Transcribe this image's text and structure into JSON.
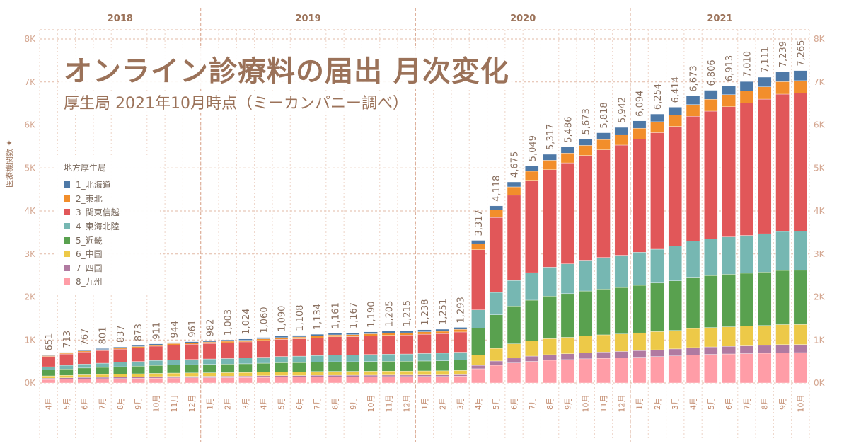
{
  "chart_data": {
    "type": "bar",
    "stacked": true,
    "title": "オンライン診療料の届出 月次変化",
    "subtitle": "厚生局 2021年10月時点（ミーカンパニー調べ）",
    "ylabel": "医療機関数",
    "ylim": [
      0,
      8000
    ],
    "y_ticks": [
      "0K",
      "1K",
      "2K",
      "3K",
      "4K",
      "5K",
      "6K",
      "7K",
      "8K"
    ],
    "grid": true,
    "legend_title": "地方厚生局",
    "legend_position": "left",
    "years": [
      {
        "label": "2018",
        "months": 9
      },
      {
        "label": "2019",
        "months": 12
      },
      {
        "label": "2020",
        "months": 12
      },
      {
        "label": "2021",
        "months": 10
      }
    ],
    "categories": [
      "4月",
      "5月",
      "6月",
      "7月",
      "8月",
      "9月",
      "10月",
      "11月",
      "12月",
      "1月",
      "2月",
      "3月",
      "4月",
      "5月",
      "6月",
      "7月",
      "8月",
      "9月",
      "10月",
      "11月",
      "12月",
      "1月",
      "2月",
      "3月",
      "4月",
      "5月",
      "6月",
      "7月",
      "8月",
      "9月",
      "10月",
      "11月",
      "12月",
      "1月",
      "2月",
      "3月",
      "4月",
      "5月",
      "6月",
      "7月",
      "8月",
      "9月",
      "10月"
    ],
    "totals": [
      651,
      713,
      767,
      801,
      837,
      873,
      911,
      944,
      961,
      982,
      1003,
      1024,
      1060,
      1090,
      1108,
      1134,
      1161,
      1167,
      1190,
      1205,
      1215,
      1238,
      1251,
      1293,
      3317,
      4118,
      4675,
      5049,
      5317,
      5486,
      5673,
      5818,
      5942,
      6094,
      6254,
      6414,
      6673,
      6806,
      6913,
      7010,
      7111,
      7239,
      7265
    ],
    "total_labels": [
      "651",
      "713",
      "767",
      "801",
      "837",
      "873",
      "911",
      "944",
      "961",
      "982",
      "1,003",
      "1,024",
      "1,060",
      "1,090",
      "1,108",
      "1,134",
      "1,161",
      "1,167",
      "1,190",
      "1,205",
      "1,215",
      "1,238",
      "1,251",
      "1,293",
      "3,317",
      "4,118",
      "4,675",
      "5,049",
      "5,317",
      "5,486",
      "5,673",
      "5,818",
      "5,942",
      "6,094",
      "6,254",
      "6,414",
      "6,673",
      "6,806",
      "6,913",
      "7,010",
      "7,111",
      "7,239",
      "7,265"
    ],
    "series": [
      {
        "name": "1_北海道",
        "color": "#4e79a7",
        "values": [
          17,
          20,
          23,
          23,
          23,
          25,
          25,
          27,
          28,
          28,
          31,
          31,
          33,
          35,
          38,
          39,
          42,
          42,
          46,
          46,
          48,
          49,
          48,
          47,
          77,
          96,
          115,
          126,
          138,
          141,
          149,
          157,
          167,
          171,
          179,
          187,
          199,
          209,
          210,
          219,
          225,
          233,
          235
        ]
      },
      {
        "name": "2_東北",
        "color": "#f28e2b",
        "values": [
          17,
          19,
          21,
          23,
          25,
          27,
          29,
          31,
          32,
          34,
          35,
          37,
          39,
          41,
          42,
          44,
          46,
          47,
          49,
          51,
          52,
          55,
          56,
          60,
          140,
          173,
          195,
          211,
          221,
          227,
          234,
          240,
          244,
          250,
          256,
          262,
          272,
          276,
          279,
          283,
          286,
          290,
          290
        ]
      },
      {
        "name": "3_関東信越",
        "color": "#e15759",
        "values": [
          240,
          263,
          283,
          295,
          308,
          321,
          335,
          347,
          353,
          361,
          368,
          376,
          388,
          398,
          404,
          413,
          422,
          424,
          432,
          437,
          441,
          449,
          454,
          470,
          1400,
          1742,
          1982,
          2146,
          2265,
          2348,
          2434,
          2502,
          2561,
          2633,
          2708,
          2784,
          2903,
          2967,
          3028,
          3077,
          3129,
          3192,
          3210
        ]
      },
      {
        "name": "4_東海北陸",
        "color": "#76b7b2",
        "values": [
          77,
          85,
          92,
          97,
          103,
          108,
          114,
          119,
          122,
          126,
          130,
          134,
          140,
          145,
          149,
          153,
          158,
          160,
          164,
          167,
          169,
          174,
          178,
          186,
          420,
          523,
          593,
          640,
          673,
          693,
          717,
          734,
          749,
          768,
          787,
          807,
          839,
          855,
          867,
          878,
          890,
          906,
          910
        ]
      },
      {
        "name": "5_近畿",
        "color": "#59a14f",
        "values": [
          136,
          148,
          158,
          165,
          171,
          178,
          185,
          190,
          193,
          196,
          199,
          202,
          208,
          213,
          215,
          219,
          223,
          223,
          226,
          228,
          228,
          231,
          233,
          240,
          630,
          778,
          879,
          944,
          989,
          1015,
          1044,
          1065,
          1081,
          1106,
          1129,
          1152,
          1192,
          1209,
          1222,
          1232,
          1244,
          1260,
          1260
        ]
      },
      {
        "name": "6_中国",
        "color": "#edc948",
        "values": [
          54,
          59,
          63,
          66,
          69,
          72,
          75,
          77,
          78,
          80,
          81,
          82,
          85,
          87,
          88,
          90,
          91,
          91,
          92,
          93,
          94,
          95,
          96,
          99,
          240,
          295,
          332,
          357,
          373,
          383,
          393,
          401,
          406,
          414,
          423,
          430,
          445,
          451,
          455,
          458,
          462,
          466,
          465
        ]
      },
      {
        "name": "7_四国",
        "color": "#b07aa1",
        "values": [
          28,
          30,
          32,
          33,
          34,
          34,
          35,
          36,
          36,
          35,
          35,
          35,
          36,
          36,
          35,
          35,
          35,
          35,
          34,
          34,
          33,
          33,
          33,
          33,
          80,
          99,
          113,
          123,
          130,
          135,
          140,
          144,
          148,
          152,
          157,
          162,
          169,
          173,
          177,
          180,
          183,
          188,
          188
        ]
      },
      {
        "name": "8_九州",
        "color": "#ff9da7",
        "values": [
          82,
          89,
          95,
          99,
          104,
          108,
          113,
          117,
          119,
          122,
          124,
          127,
          131,
          135,
          137,
          141,
          144,
          145,
          147,
          149,
          150,
          152,
          153,
          158,
          330,
          412,
          466,
          502,
          528,
          544,
          562,
          575,
          586,
          600,
          615,
          630,
          654,
          666,
          675,
          683,
          692,
          704,
          707
        ]
      }
    ]
  }
}
